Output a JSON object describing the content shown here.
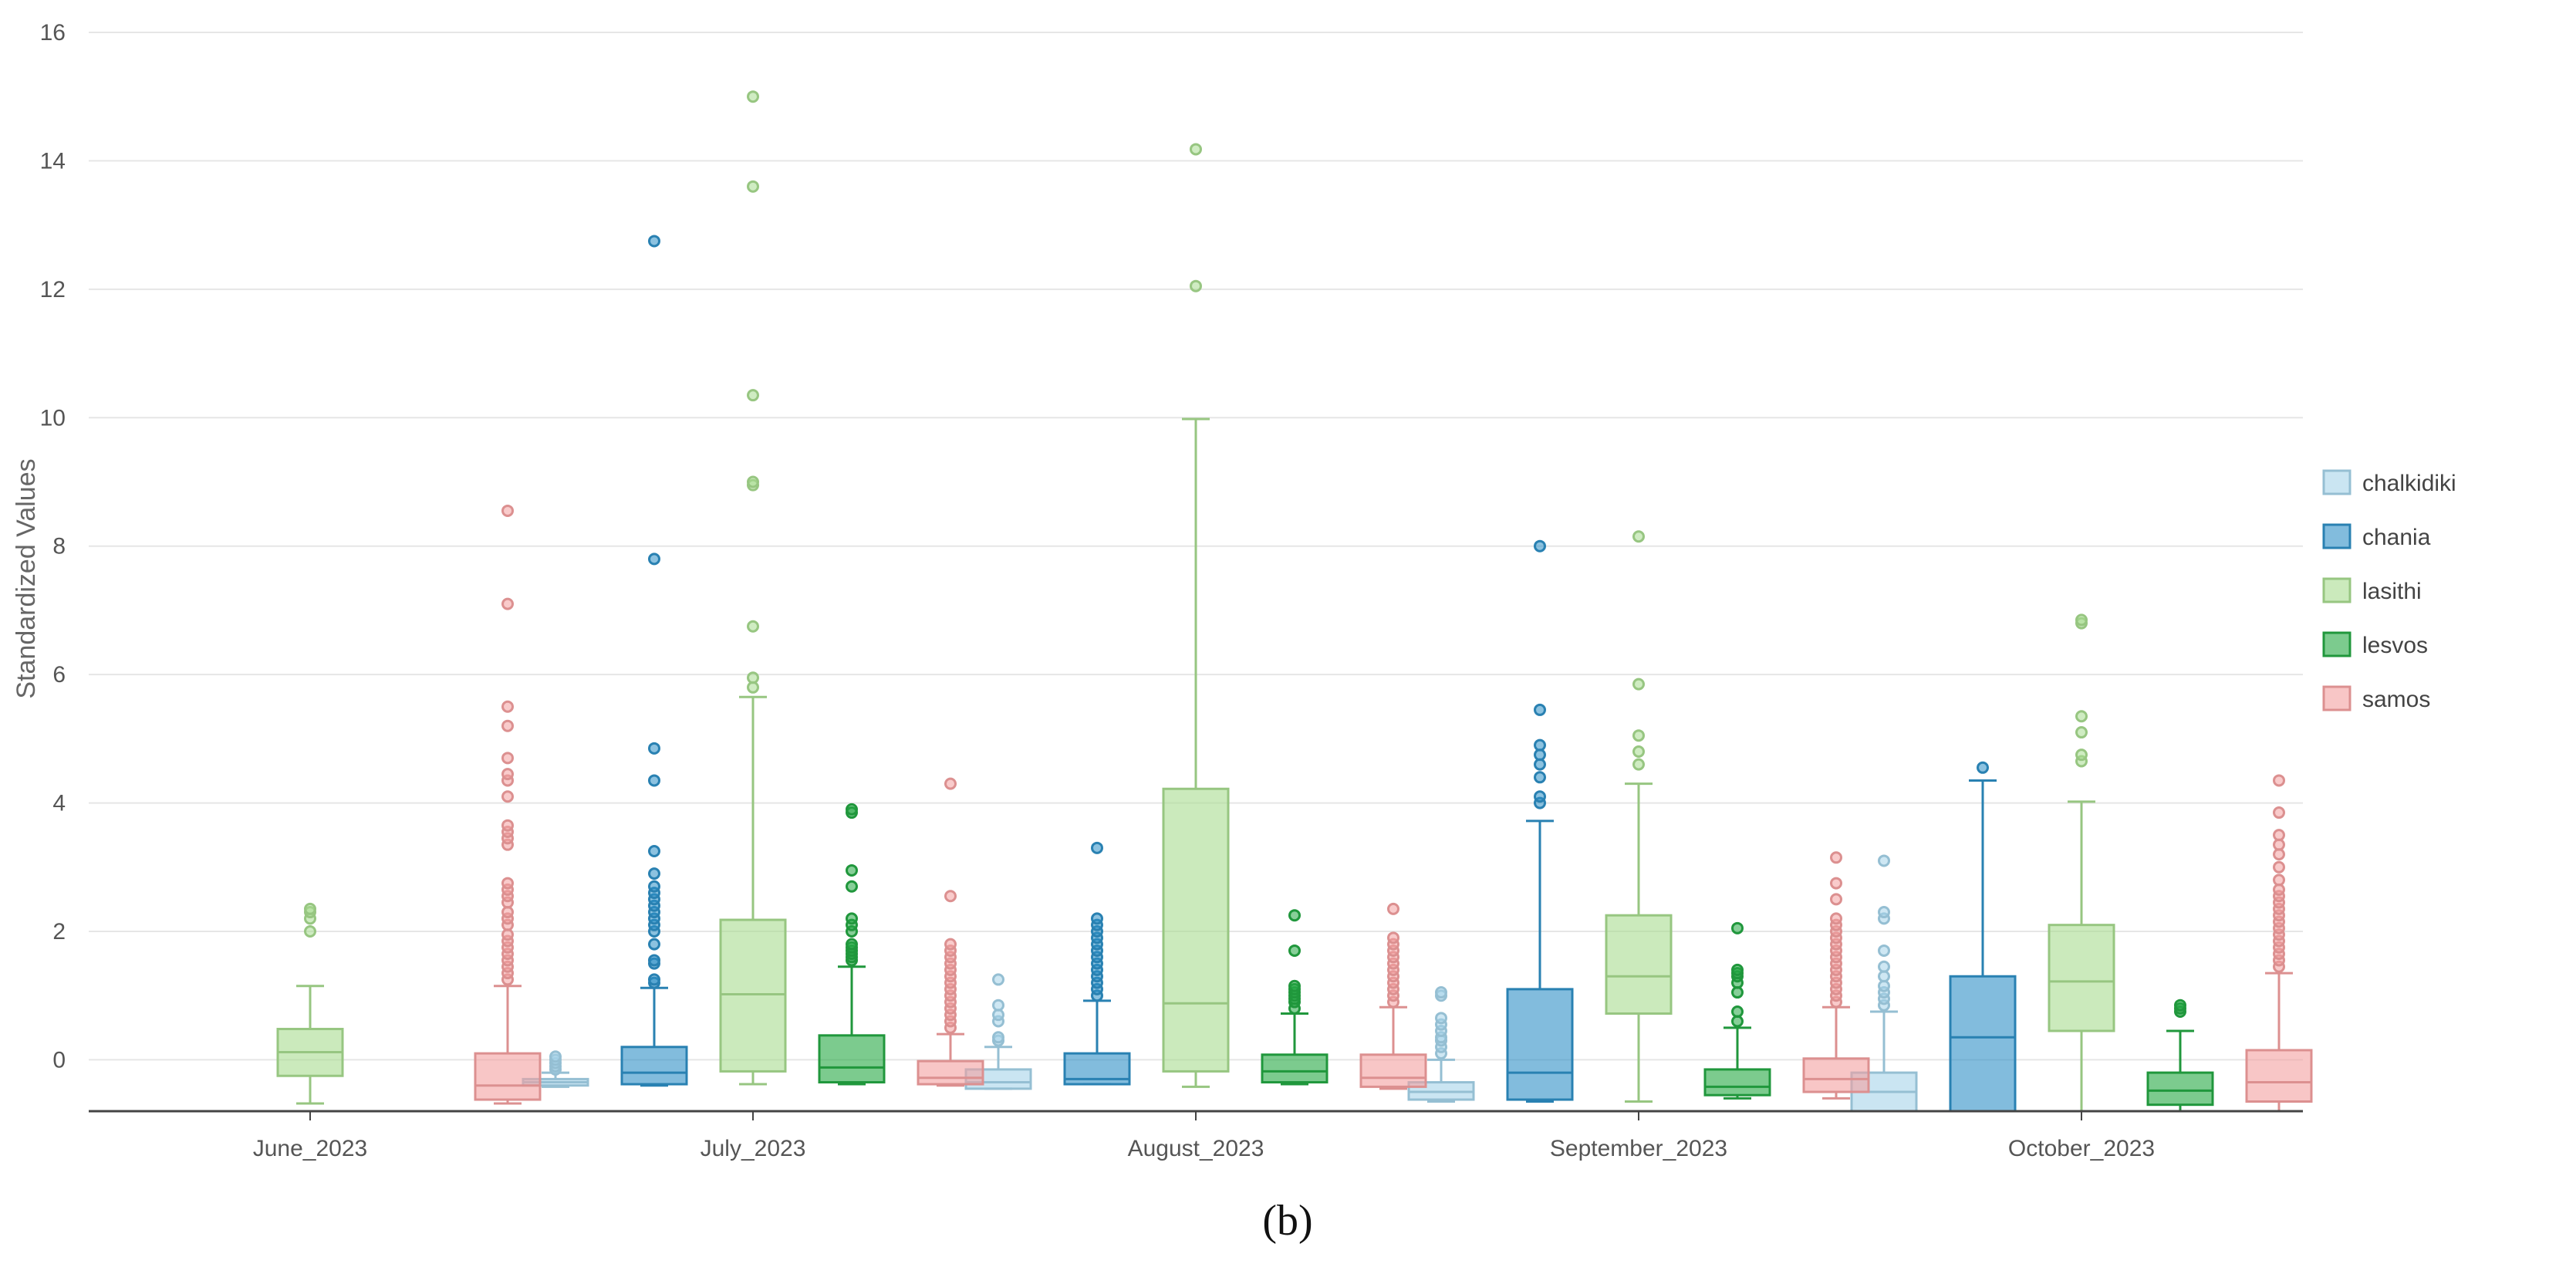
{
  "chart_data": {
    "type": "boxplot",
    "ylabel": "Standardized Values",
    "xlabel": "",
    "ylim": [
      -0.8,
      16
    ],
    "yticks": [
      0,
      2,
      4,
      6,
      8,
      10,
      12,
      14,
      16
    ],
    "grid": "horizontal",
    "legend_position": "right",
    "categories": [
      "June_2023",
      "July_2023",
      "August_2023",
      "September_2023",
      "October_2023"
    ],
    "panel_label": "(b)",
    "series": [
      {
        "name": "chalkidiki",
        "color": "#a6d4ea",
        "boxes": [
          null,
          {
            "whisker_low": -0.42,
            "q1": -0.4,
            "median": -0.35,
            "q3": -0.3,
            "whisker_high": -0.2,
            "outliers": [
              -0.15,
              -0.1,
              -0.05,
              0.0,
              0.05
            ]
          },
          {
            "whisker_low": -0.45,
            "q1": -0.45,
            "median": -0.35,
            "q3": -0.15,
            "whisker_high": 0.2,
            "outliers": [
              0.3,
              0.35,
              0.6,
              0.7,
              0.85,
              1.25
            ]
          },
          {
            "whisker_low": -0.65,
            "q1": -0.62,
            "median": -0.5,
            "q3": -0.35,
            "whisker_high": 0.0,
            "outliers": [
              0.1,
              0.2,
              0.3,
              0.35,
              0.45,
              0.55,
              0.65,
              1.0,
              1.05
            ]
          },
          {
            "whisker_low": -0.8,
            "q1": -0.8,
            "median": -0.5,
            "q3": -0.2,
            "whisker_high": 0.75,
            "outliers": [
              0.85,
              0.95,
              1.05,
              1.15,
              1.3,
              1.45,
              1.7,
              2.2,
              2.3,
              3.1
            ]
          }
        ]
      },
      {
        "name": "chania",
        "color": "#2e8fc6",
        "boxes": [
          null,
          {
            "whisker_low": -0.4,
            "q1": -0.38,
            "median": -0.2,
            "q3": 0.2,
            "whisker_high": 1.12,
            "outliers": [
              1.2,
              1.25,
              1.5,
              1.55,
              1.8,
              2.0,
              2.1,
              2.2,
              2.3,
              2.4,
              2.5,
              2.6,
              2.7,
              2.9,
              3.25,
              4.35,
              4.85,
              7.8,
              12.75
            ]
          },
          {
            "whisker_low": -0.38,
            "q1": -0.38,
            "median": -0.3,
            "q3": 0.1,
            "whisker_high": 0.92,
            "outliers": [
              1.0,
              1.1,
              1.2,
              1.3,
              1.4,
              1.5,
              1.6,
              1.7,
              1.8,
              1.9,
              2.0,
              2.1,
              2.2,
              3.3
            ]
          },
          {
            "whisker_low": -0.65,
            "q1": -0.62,
            "median": -0.2,
            "q3": 1.1,
            "whisker_high": 3.72,
            "outliers": [
              4.0,
              4.1,
              4.4,
              4.6,
              4.75,
              4.9,
              5.45,
              8.0
            ]
          },
          {
            "whisker_low": -0.8,
            "q1": -0.8,
            "median": 0.35,
            "q3": 1.3,
            "whisker_high": 4.35,
            "outliers": [
              4.55
            ]
          }
        ]
      },
      {
        "name": "lasithi",
        "color": "#a8dc8f",
        "boxes": [
          {
            "whisker_low": -0.68,
            "q1": -0.25,
            "median": 0.12,
            "q3": 0.48,
            "whisker_high": 1.15,
            "outliers": [
              2.0,
              2.2,
              2.3,
              2.35
            ]
          },
          {
            "whisker_low": -0.38,
            "q1": -0.18,
            "median": 1.02,
            "q3": 2.18,
            "whisker_high": 5.65,
            "outliers": [
              5.8,
              5.95,
              6.75,
              8.95,
              9.0,
              10.35,
              13.6,
              15.0
            ]
          },
          {
            "whisker_low": -0.42,
            "q1": -0.18,
            "median": 0.88,
            "q3": 4.22,
            "whisker_high": 9.98,
            "outliers": [
              12.05,
              14.18
            ]
          },
          {
            "whisker_low": -0.65,
            "q1": 0.72,
            "median": 1.3,
            "q3": 2.25,
            "whisker_high": 4.3,
            "outliers": [
              4.6,
              4.8,
              5.05,
              5.85,
              8.15
            ]
          },
          {
            "whisker_low": -0.8,
            "q1": 0.45,
            "median": 1.22,
            "q3": 2.1,
            "whisker_high": 4.02,
            "outliers": [
              4.65,
              4.75,
              5.1,
              5.35,
              6.8,
              6.85
            ]
          }
        ]
      },
      {
        "name": "lesvos",
        "color": "#24a843",
        "boxes": [
          null,
          {
            "whisker_low": -0.38,
            "q1": -0.35,
            "median": -0.12,
            "q3": 0.38,
            "whisker_high": 1.45,
            "outliers": [
              1.55,
              1.6,
              1.65,
              1.7,
              1.75,
              1.8,
              2.0,
              2.1,
              2.2,
              2.7,
              2.95,
              3.85,
              3.9
            ]
          },
          {
            "whisker_low": -0.38,
            "q1": -0.35,
            "median": -0.18,
            "q3": 0.08,
            "whisker_high": 0.72,
            "outliers": [
              0.8,
              0.9,
              0.95,
              1.0,
              1.05,
              1.1,
              1.15,
              1.7,
              2.25
            ]
          },
          {
            "whisker_low": -0.6,
            "q1": -0.55,
            "median": -0.42,
            "q3": -0.15,
            "whisker_high": 0.5,
            "outliers": [
              0.6,
              0.75,
              1.05,
              1.2,
              1.3,
              1.35,
              1.4,
              2.05
            ]
          },
          {
            "whisker_low": -0.8,
            "q1": -0.7,
            "median": -0.48,
            "q3": -0.2,
            "whisker_high": 0.45,
            "outliers": [
              0.75,
              0.8,
              0.85
            ]
          }
        ]
      },
      {
        "name": "samos",
        "color": "#f4a0a0",
        "boxes": [
          {
            "whisker_low": -0.68,
            "q1": -0.62,
            "median": -0.4,
            "q3": 0.1,
            "whisker_high": 1.15,
            "outliers": [
              1.25,
              1.35,
              1.45,
              1.55,
              1.65,
              1.75,
              1.85,
              1.95,
              2.1,
              2.2,
              2.3,
              2.45,
              2.55,
              2.65,
              2.75,
              3.35,
              3.45,
              3.55,
              3.65,
              4.1,
              4.35,
              4.45,
              4.7,
              5.2,
              5.5,
              7.1,
              8.55
            ]
          },
          {
            "whisker_low": -0.4,
            "q1": -0.38,
            "median": -0.28,
            "q3": -0.02,
            "whisker_high": 0.4,
            "outliers": [
              0.5,
              0.6,
              0.7,
              0.8,
              0.9,
              1.0,
              1.1,
              1.2,
              1.3,
              1.4,
              1.5,
              1.6,
              1.7,
              1.8,
              2.55,
              4.3
            ]
          },
          {
            "whisker_low": -0.45,
            "q1": -0.42,
            "median": -0.28,
            "q3": 0.08,
            "whisker_high": 0.82,
            "outliers": [
              0.9,
              1.0,
              1.1,
              1.2,
              1.3,
              1.4,
              1.5,
              1.6,
              1.7,
              1.8,
              1.9,
              2.35
            ]
          },
          {
            "whisker_low": -0.6,
            "q1": -0.5,
            "median": -0.3,
            "q3": 0.02,
            "whisker_high": 0.82,
            "outliers": [
              0.9,
              1.0,
              1.1,
              1.2,
              1.3,
              1.4,
              1.5,
              1.6,
              1.7,
              1.8,
              1.9,
              2.0,
              2.1,
              2.2,
              2.5,
              2.75,
              3.15
            ]
          },
          {
            "whisker_low": -0.8,
            "q1": -0.65,
            "median": -0.35,
            "q3": 0.15,
            "whisker_high": 1.35,
            "outliers": [
              1.45,
              1.55,
              1.65,
              1.75,
              1.85,
              1.95,
              2.05,
              2.15,
              2.25,
              2.35,
              2.45,
              2.55,
              2.65,
              2.8,
              3.0,
              3.2,
              3.35,
              3.5,
              3.85,
              4.35
            ]
          }
        ]
      }
    ]
  }
}
